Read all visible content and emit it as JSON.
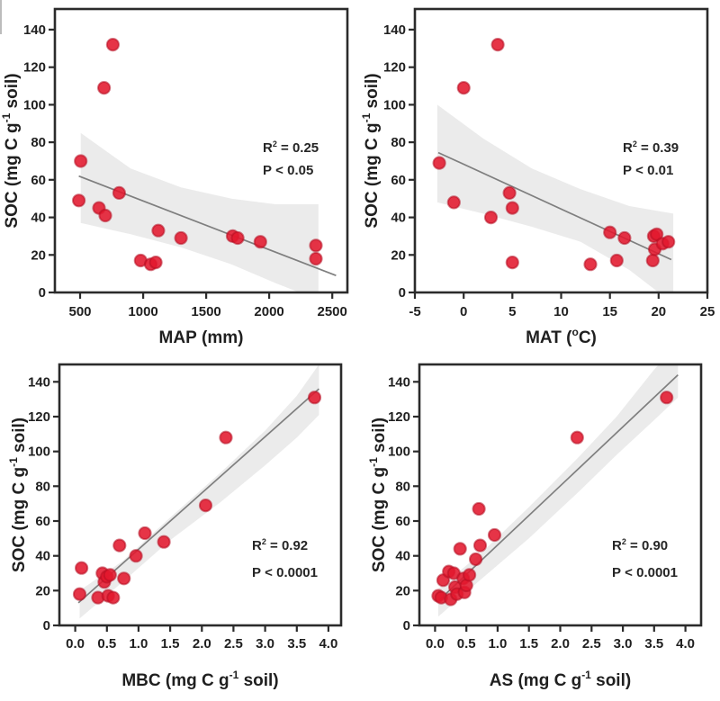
{
  "figure": {
    "type": "scatter-grid",
    "description": "Four-panel scatter figure: soil organic carbon (SOC) versus MAP, MAT, MBC and AS with linear regressions and confidence bands",
    "colors": {
      "point": "#e3182d",
      "point_edge": "#b50f22",
      "regression_line": "#7f7f7f",
      "confidence_band": "#e8e8e8",
      "axis": "#2b2b2b",
      "text": "#1f1f1f",
      "annotation_text": "#262626",
      "background": "#ffffff"
    }
  },
  "chart_data": [
    {
      "id": "map",
      "type": "scatter",
      "position": "top-left",
      "xlabel_parts": [
        {
          "t": "MAP (mm)"
        }
      ],
      "ylabel_parts": [
        {
          "t": "SOC (mg C g"
        },
        {
          "t": "-1",
          "sup": true
        },
        {
          "t": " soil)"
        }
      ],
      "xlim": [
        300,
        2620
      ],
      "ylim": [
        0,
        151
      ],
      "xticks": [
        {
          "v": 500,
          "label": "500"
        },
        {
          "v": 1000,
          "label": "1000"
        },
        {
          "v": 1500,
          "label": "1500"
        },
        {
          "v": 2000,
          "label": "2000"
        },
        {
          "v": 2500,
          "label": "2500"
        }
      ],
      "yticks": [
        {
          "v": 0,
          "label": "0"
        },
        {
          "v": 20,
          "label": "20"
        },
        {
          "v": 40,
          "label": "40"
        },
        {
          "v": 60,
          "label": "60"
        },
        {
          "v": 80,
          "label": "80"
        },
        {
          "v": 100,
          "label": "100"
        },
        {
          "v": 120,
          "label": "120"
        },
        {
          "v": 140,
          "label": "140"
        }
      ],
      "points": [
        [
          490,
          49
        ],
        [
          505,
          70
        ],
        [
          650,
          45
        ],
        [
          690,
          109
        ],
        [
          700,
          41
        ],
        [
          760,
          132
        ],
        [
          810,
          53
        ],
        [
          980,
          17
        ],
        [
          1060,
          15
        ],
        [
          1100,
          16
        ],
        [
          1120,
          33
        ],
        [
          1300,
          29
        ],
        [
          1710,
          30
        ],
        [
          1750,
          29
        ],
        [
          1930,
          27
        ],
        [
          2370,
          25
        ],
        [
          2370,
          18
        ]
      ],
      "regression_line": {
        "x1": 490,
        "y1": 62,
        "x2": 2530,
        "y2": 9
      },
      "confidence_band": {
        "upper": [
          [
            505,
            85
          ],
          [
            900,
            66
          ],
          [
            1300,
            56
          ],
          [
            1700,
            50
          ],
          [
            2050,
            47
          ],
          [
            2390,
            47
          ]
        ],
        "lower": [
          [
            505,
            37
          ],
          [
            900,
            31
          ],
          [
            1300,
            24
          ],
          [
            1700,
            15
          ],
          [
            2050,
            5
          ],
          [
            2390,
            -4
          ]
        ]
      },
      "annotation": {
        "r2_parts": [
          {
            "t": "R"
          },
          {
            "t": "2",
            "sup": true
          },
          {
            "t": " = 0.25"
          }
        ],
        "p_text": "P < 0.05"
      }
    },
    {
      "id": "mat",
      "type": "scatter",
      "position": "top-right",
      "xlabel_parts": [
        {
          "t": "MAT ("
        },
        {
          "t": "o",
          "sup": true
        },
        {
          "t": "C)"
        }
      ],
      "ylabel_parts": [
        {
          "t": "SOC (mg C g"
        },
        {
          "t": "-1",
          "sup": true
        },
        {
          "t": " soil)"
        }
      ],
      "xlim": [
        -5,
        25
      ],
      "ylim": [
        0,
        151
      ],
      "xticks": [
        {
          "v": -5,
          "label": "-5"
        },
        {
          "v": 0,
          "label": "0"
        },
        {
          "v": 5,
          "label": "5"
        },
        {
          "v": 10,
          "label": "10"
        },
        {
          "v": 15,
          "label": "15"
        },
        {
          "v": 20,
          "label": "20"
        },
        {
          "v": 25,
          "label": "25"
        }
      ],
      "yticks": [
        {
          "v": 0,
          "label": "0"
        },
        {
          "v": 20,
          "label": "20"
        },
        {
          "v": 40,
          "label": "40"
        },
        {
          "v": 60,
          "label": "60"
        },
        {
          "v": 80,
          "label": "80"
        },
        {
          "v": 100,
          "label": "100"
        },
        {
          "v": 120,
          "label": "120"
        },
        {
          "v": 140,
          "label": "140"
        }
      ],
      "points": [
        [
          -2.5,
          69
        ],
        [
          -1,
          48
        ],
        [
          0,
          109
        ],
        [
          2.8,
          40
        ],
        [
          3.5,
          132
        ],
        [
          4.7,
          53
        ],
        [
          5,
          45
        ],
        [
          5,
          16
        ],
        [
          13,
          15
        ],
        [
          15,
          32
        ],
        [
          15.7,
          17
        ],
        [
          16.5,
          29
        ],
        [
          19.4,
          17
        ],
        [
          19.5,
          30
        ],
        [
          19.8,
          31
        ],
        [
          19.6,
          23
        ],
        [
          20.4,
          26
        ],
        [
          21,
          27
        ]
      ],
      "regression_line": {
        "x1": -2.6,
        "y1": 74.5,
        "x2": 21.3,
        "y2": 17.5
      },
      "confidence_band": {
        "upper": [
          [
            -2.7,
            100
          ],
          [
            2,
            82
          ],
          [
            7,
            66
          ],
          [
            12,
            55
          ],
          [
            17,
            46
          ],
          [
            21.5,
            42
          ]
        ],
        "lower": [
          [
            -2.7,
            48
          ],
          [
            2,
            42
          ],
          [
            7,
            35
          ],
          [
            12,
            27
          ],
          [
            17,
            12
          ],
          [
            21.5,
            -6
          ]
        ]
      },
      "annotation": {
        "r2_parts": [
          {
            "t": "R"
          },
          {
            "t": "2",
            "sup": true
          },
          {
            "t": " = 0.39"
          }
        ],
        "p_text": "P < 0.01"
      }
    },
    {
      "id": "mbc",
      "type": "scatter",
      "position": "bottom-left",
      "xlabel_parts": [
        {
          "t": "MBC (mg C g"
        },
        {
          "t": "-1",
          "sup": true
        },
        {
          "t": " soil)"
        }
      ],
      "ylabel_parts": [
        {
          "t": "SOC (mg C g"
        },
        {
          "t": "-1",
          "sup": true
        },
        {
          "t": " soil)"
        }
      ],
      "xlim": [
        -0.25,
        4.2
      ],
      "ylim": [
        0,
        150
      ],
      "xticks": [
        {
          "v": 0,
          "label": "0.0"
        },
        {
          "v": 0.5,
          "label": "0.5"
        },
        {
          "v": 1,
          "label": "1.0"
        },
        {
          "v": 1.5,
          "label": "1.5"
        },
        {
          "v": 2,
          "label": "2.0"
        },
        {
          "v": 2.5,
          "label": "2.5"
        },
        {
          "v": 3,
          "label": "3.0"
        },
        {
          "v": 3.5,
          "label": "3.5"
        },
        {
          "v": 4,
          "label": "4.0"
        }
      ],
      "yticks": [
        {
          "v": 0,
          "label": "0"
        },
        {
          "v": 20,
          "label": "20"
        },
        {
          "v": 40,
          "label": "40"
        },
        {
          "v": 60,
          "label": "60"
        },
        {
          "v": 80,
          "label": "80"
        },
        {
          "v": 100,
          "label": "100"
        },
        {
          "v": 120,
          "label": "120"
        },
        {
          "v": 140,
          "label": "140"
        }
      ],
      "points": [
        [
          0.07,
          18
        ],
        [
          0.1,
          33
        ],
        [
          0.36,
          16
        ],
        [
          0.43,
          30
        ],
        [
          0.46,
          25
        ],
        [
          0.5,
          28
        ],
        [
          0.52,
          17
        ],
        [
          0.6,
          16
        ],
        [
          0.55,
          29
        ],
        [
          0.7,
          46
        ],
        [
          0.77,
          27
        ],
        [
          0.96,
          40
        ],
        [
          1.1,
          53
        ],
        [
          1.4,
          48
        ],
        [
          2.06,
          69
        ],
        [
          2.38,
          108
        ],
        [
          3.78,
          131
        ]
      ],
      "regression_line": {
        "x1": 0.05,
        "y1": 13,
        "x2": 3.85,
        "y2": 136
      },
      "confidence_band": {
        "upper": [
          [
            0.07,
            20
          ],
          [
            0.75,
            37
          ],
          [
            1.5,
            62
          ],
          [
            2.3,
            88
          ],
          [
            3.0,
            112
          ],
          [
            3.5,
            132
          ],
          [
            3.85,
            150
          ]
        ],
        "lower": [
          [
            0.07,
            4
          ],
          [
            0.75,
            25
          ],
          [
            1.5,
            49
          ],
          [
            2.3,
            71
          ],
          [
            3.0,
            92
          ],
          [
            3.5,
            108
          ],
          [
            3.85,
            121
          ]
        ]
      },
      "annotation": {
        "r2_parts": [
          {
            "t": "R"
          },
          {
            "t": "2",
            "sup": true
          },
          {
            "t": " = 0.92"
          }
        ],
        "p_text": "P < 0.0001"
      }
    },
    {
      "id": "as",
      "type": "scatter",
      "position": "bottom-right",
      "xlabel_parts": [
        {
          "t": "AS (mg C g"
        },
        {
          "t": "-1",
          "sup": true
        },
        {
          "t": " soil)"
        }
      ],
      "ylabel_parts": [
        {
          "t": "SOC (mg C g"
        },
        {
          "t": "-1",
          "sup": true
        },
        {
          "t": " soil)"
        }
      ],
      "xlim": [
        -0.25,
        4.25
      ],
      "ylim": [
        0,
        150
      ],
      "xticks": [
        {
          "v": 0,
          "label": "0.0"
        },
        {
          "v": 0.5,
          "label": "0.5"
        },
        {
          "v": 1,
          "label": "1.0"
        },
        {
          "v": 1.5,
          "label": "1.5"
        },
        {
          "v": 2,
          "label": "2.0"
        },
        {
          "v": 2.5,
          "label": "2.5"
        },
        {
          "v": 3,
          "label": "3.0"
        },
        {
          "v": 3.5,
          "label": "3.5"
        },
        {
          "v": 4,
          "label": "4.0"
        }
      ],
      "yticks": [
        {
          "v": 0,
          "label": "0"
        },
        {
          "v": 20,
          "label": "20"
        },
        {
          "v": 40,
          "label": "40"
        },
        {
          "v": 60,
          "label": "60"
        },
        {
          "v": 80,
          "label": "80"
        },
        {
          "v": 100,
          "label": "100"
        },
        {
          "v": 120,
          "label": "120"
        },
        {
          "v": 140,
          "label": "140"
        }
      ],
      "points": [
        [
          0.05,
          17
        ],
        [
          0.1,
          16
        ],
        [
          0.13,
          26
        ],
        [
          0.22,
          31
        ],
        [
          0.25,
          15
        ],
        [
          0.3,
          30
        ],
        [
          0.32,
          22
        ],
        [
          0.35,
          18
        ],
        [
          0.4,
          44
        ],
        [
          0.45,
          27
        ],
        [
          0.47,
          19
        ],
        [
          0.5,
          23
        ],
        [
          0.55,
          29
        ],
        [
          0.65,
          38
        ],
        [
          0.7,
          67
        ],
        [
          0.72,
          46
        ],
        [
          0.95,
          52
        ],
        [
          2.27,
          108
        ],
        [
          3.7,
          131
        ]
      ],
      "regression_line": {
        "x1": 0.05,
        "y1": 14,
        "x2": 3.88,
        "y2": 144
      },
      "confidence_band": {
        "upper": [
          [
            0.05,
            21
          ],
          [
            0.75,
            42
          ],
          [
            1.5,
            68
          ],
          [
            2.3,
            97
          ],
          [
            2.9,
            120
          ],
          [
            3.5,
            147
          ],
          [
            3.88,
            162
          ]
        ],
        "lower": [
          [
            0.05,
            5
          ],
          [
            0.75,
            27
          ],
          [
            1.5,
            50
          ],
          [
            2.3,
            77
          ],
          [
            2.9,
            98
          ],
          [
            3.5,
            118
          ],
          [
            3.88,
            131
          ]
        ]
      },
      "annotation": {
        "r2_parts": [
          {
            "t": "R"
          },
          {
            "t": "2",
            "sup": true
          },
          {
            "t": " = 0.90"
          }
        ],
        "p_text": "P < 0.0001"
      }
    }
  ]
}
